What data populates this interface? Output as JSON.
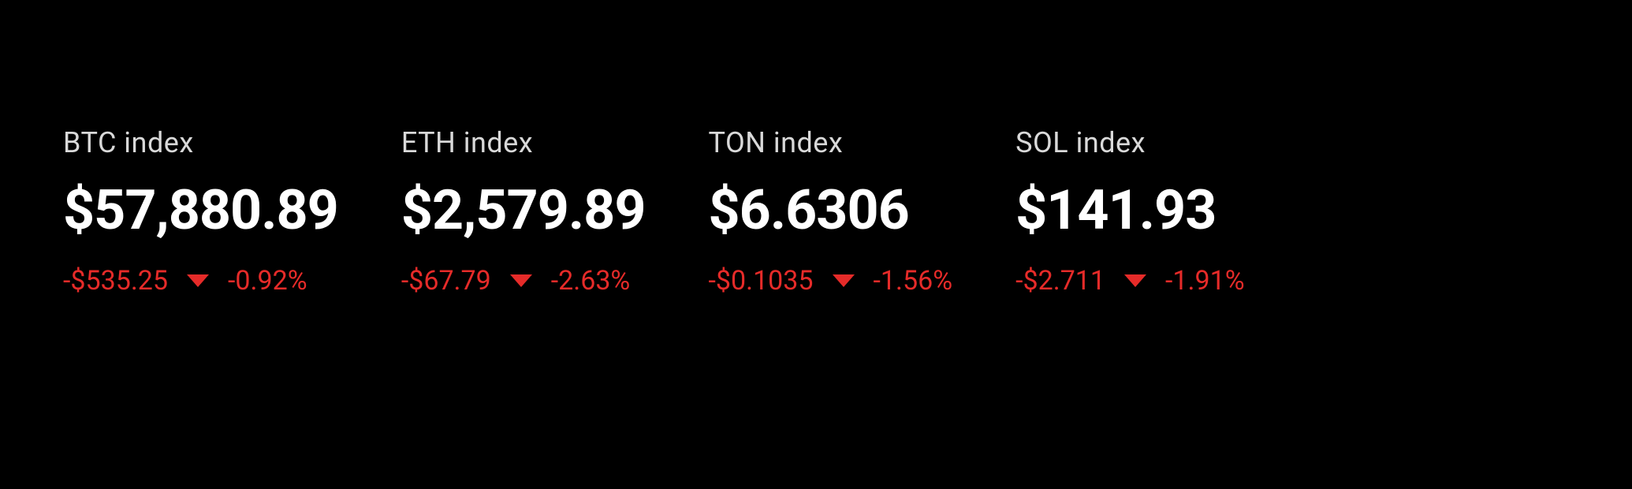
{
  "theme": {
    "background": "#000000",
    "label_color": "#d9d9d9",
    "price_color": "#ffffff",
    "down_color": "#e62b29",
    "label_fontsize": 36,
    "price_fontsize": 70,
    "change_fontsize": 34
  },
  "indices": [
    {
      "id": "btc",
      "label": "BTC index",
      "price": "$57,880.89",
      "change_abs": "-$535.25",
      "change_pct": "-0.92%",
      "direction": "down"
    },
    {
      "id": "eth",
      "label": "ETH index",
      "price": "$2,579.89",
      "change_abs": "-$67.79",
      "change_pct": "-2.63%",
      "direction": "down"
    },
    {
      "id": "ton",
      "label": "TON index",
      "price": "$6.6306",
      "change_abs": "-$0.1035",
      "change_pct": "-1.56%",
      "direction": "down"
    },
    {
      "id": "sol",
      "label": "SOL index",
      "price": "$141.93",
      "change_abs": "-$2.711",
      "change_pct": "-1.91%",
      "direction": "down"
    }
  ]
}
